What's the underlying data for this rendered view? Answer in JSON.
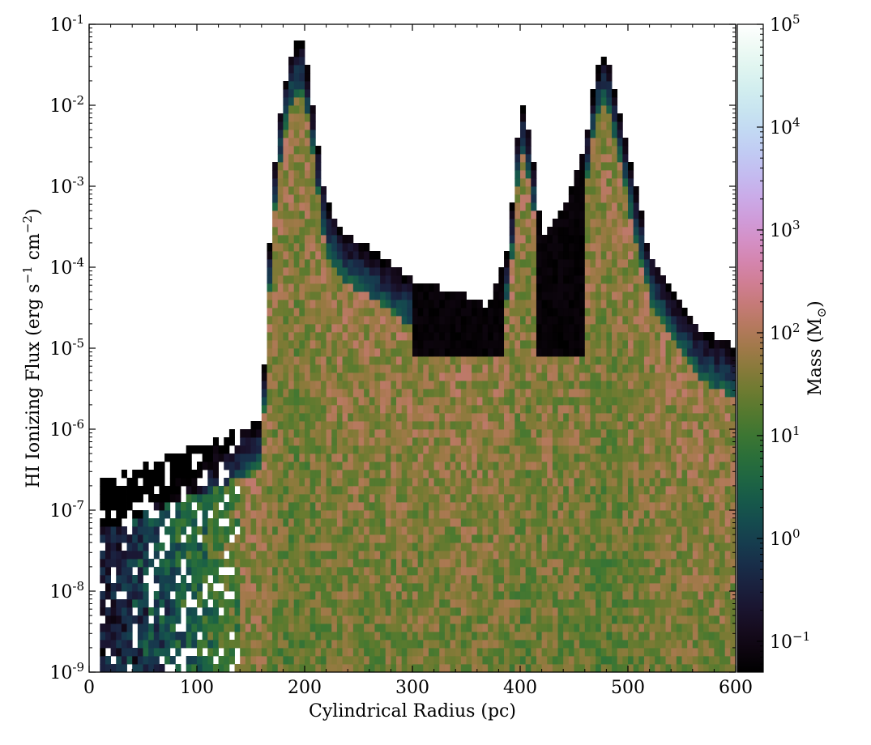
{
  "chart_data": {
    "type": "heatmap",
    "title": "",
    "xlabel": "Cylindrical Radius  (pc)",
    "ylabel": {
      "text": "HI Ionizing Flux (erg s",
      "sup1": "−1",
      "mid": " cm",
      "sup2": "−2",
      "end": ")"
    },
    "colorbar_label": {
      "text": "Mass (M",
      "sub": "⊙",
      "end": ")"
    },
    "xlim": [
      0,
      600
    ],
    "ylim_log10": [
      -9,
      -1
    ],
    "y_scale": "log",
    "colorbar_scale": "log",
    "colorbar_range_log10": [
      -1.3,
      5
    ],
    "colormap": "cubehelix",
    "x_ticks": [
      "0",
      "100",
      "200",
      "300",
      "400",
      "500",
      "600"
    ],
    "y_ticks": [
      {
        "base": "10",
        "exp": "-9"
      },
      {
        "base": "10",
        "exp": "-8"
      },
      {
        "base": "10",
        "exp": "-7"
      },
      {
        "base": "10",
        "exp": "-6"
      },
      {
        "base": "10",
        "exp": "-5"
      },
      {
        "base": "10",
        "exp": "-4"
      },
      {
        "base": "10",
        "exp": "-3"
      },
      {
        "base": "10",
        "exp": "-2"
      },
      {
        "base": "10",
        "exp": "-1"
      }
    ],
    "colorbar_ticks": [
      {
        "base": "10",
        "exp": "−1"
      },
      {
        "base": "10",
        "exp": "0"
      },
      {
        "base": "10",
        "exp": "1"
      },
      {
        "base": "10",
        "exp": "2"
      },
      {
        "base": "10",
        "exp": "3"
      },
      {
        "base": "10",
        "exp": "4"
      },
      {
        "base": "10",
        "exp": "5"
      }
    ],
    "bins": {
      "x_count": 120,
      "y_count": 80
    },
    "features": {
      "upper_envelope_log10_flux_vs_radius": [
        [
          10,
          -6.6
        ],
        [
          30,
          -6.55
        ],
        [
          60,
          -6.4
        ],
        [
          100,
          -6.2
        ],
        [
          140,
          -6.0
        ],
        [
          160,
          -5.9
        ],
        [
          170,
          -3.0
        ],
        [
          180,
          -1.8
        ],
        [
          190,
          -1.25
        ],
        [
          200,
          -1.25
        ],
        [
          210,
          -2.3
        ],
        [
          220,
          -3.2
        ],
        [
          240,
          -3.6
        ],
        [
          270,
          -3.85
        ],
        [
          300,
          -4.15
        ],
        [
          340,
          -4.3
        ],
        [
          370,
          -4.5
        ],
        [
          390,
          -3.7
        ],
        [
          400,
          -1.9
        ],
        [
          410,
          -2.4
        ],
        [
          420,
          -3.6
        ],
        [
          440,
          -3.3
        ],
        [
          460,
          -2.5
        ],
        [
          470,
          -1.6
        ],
        [
          480,
          -1.3
        ],
        [
          500,
          -2.6
        ],
        [
          520,
          -3.8
        ],
        [
          550,
          -4.5
        ],
        [
          570,
          -4.8
        ],
        [
          600,
          -5.0
        ]
      ],
      "peak_radii_pc": [
        190,
        400,
        475
      ],
      "peak_mass_log10": 1.8,
      "low_mass_region_radius_pc": [
        0,
        140
      ]
    }
  }
}
